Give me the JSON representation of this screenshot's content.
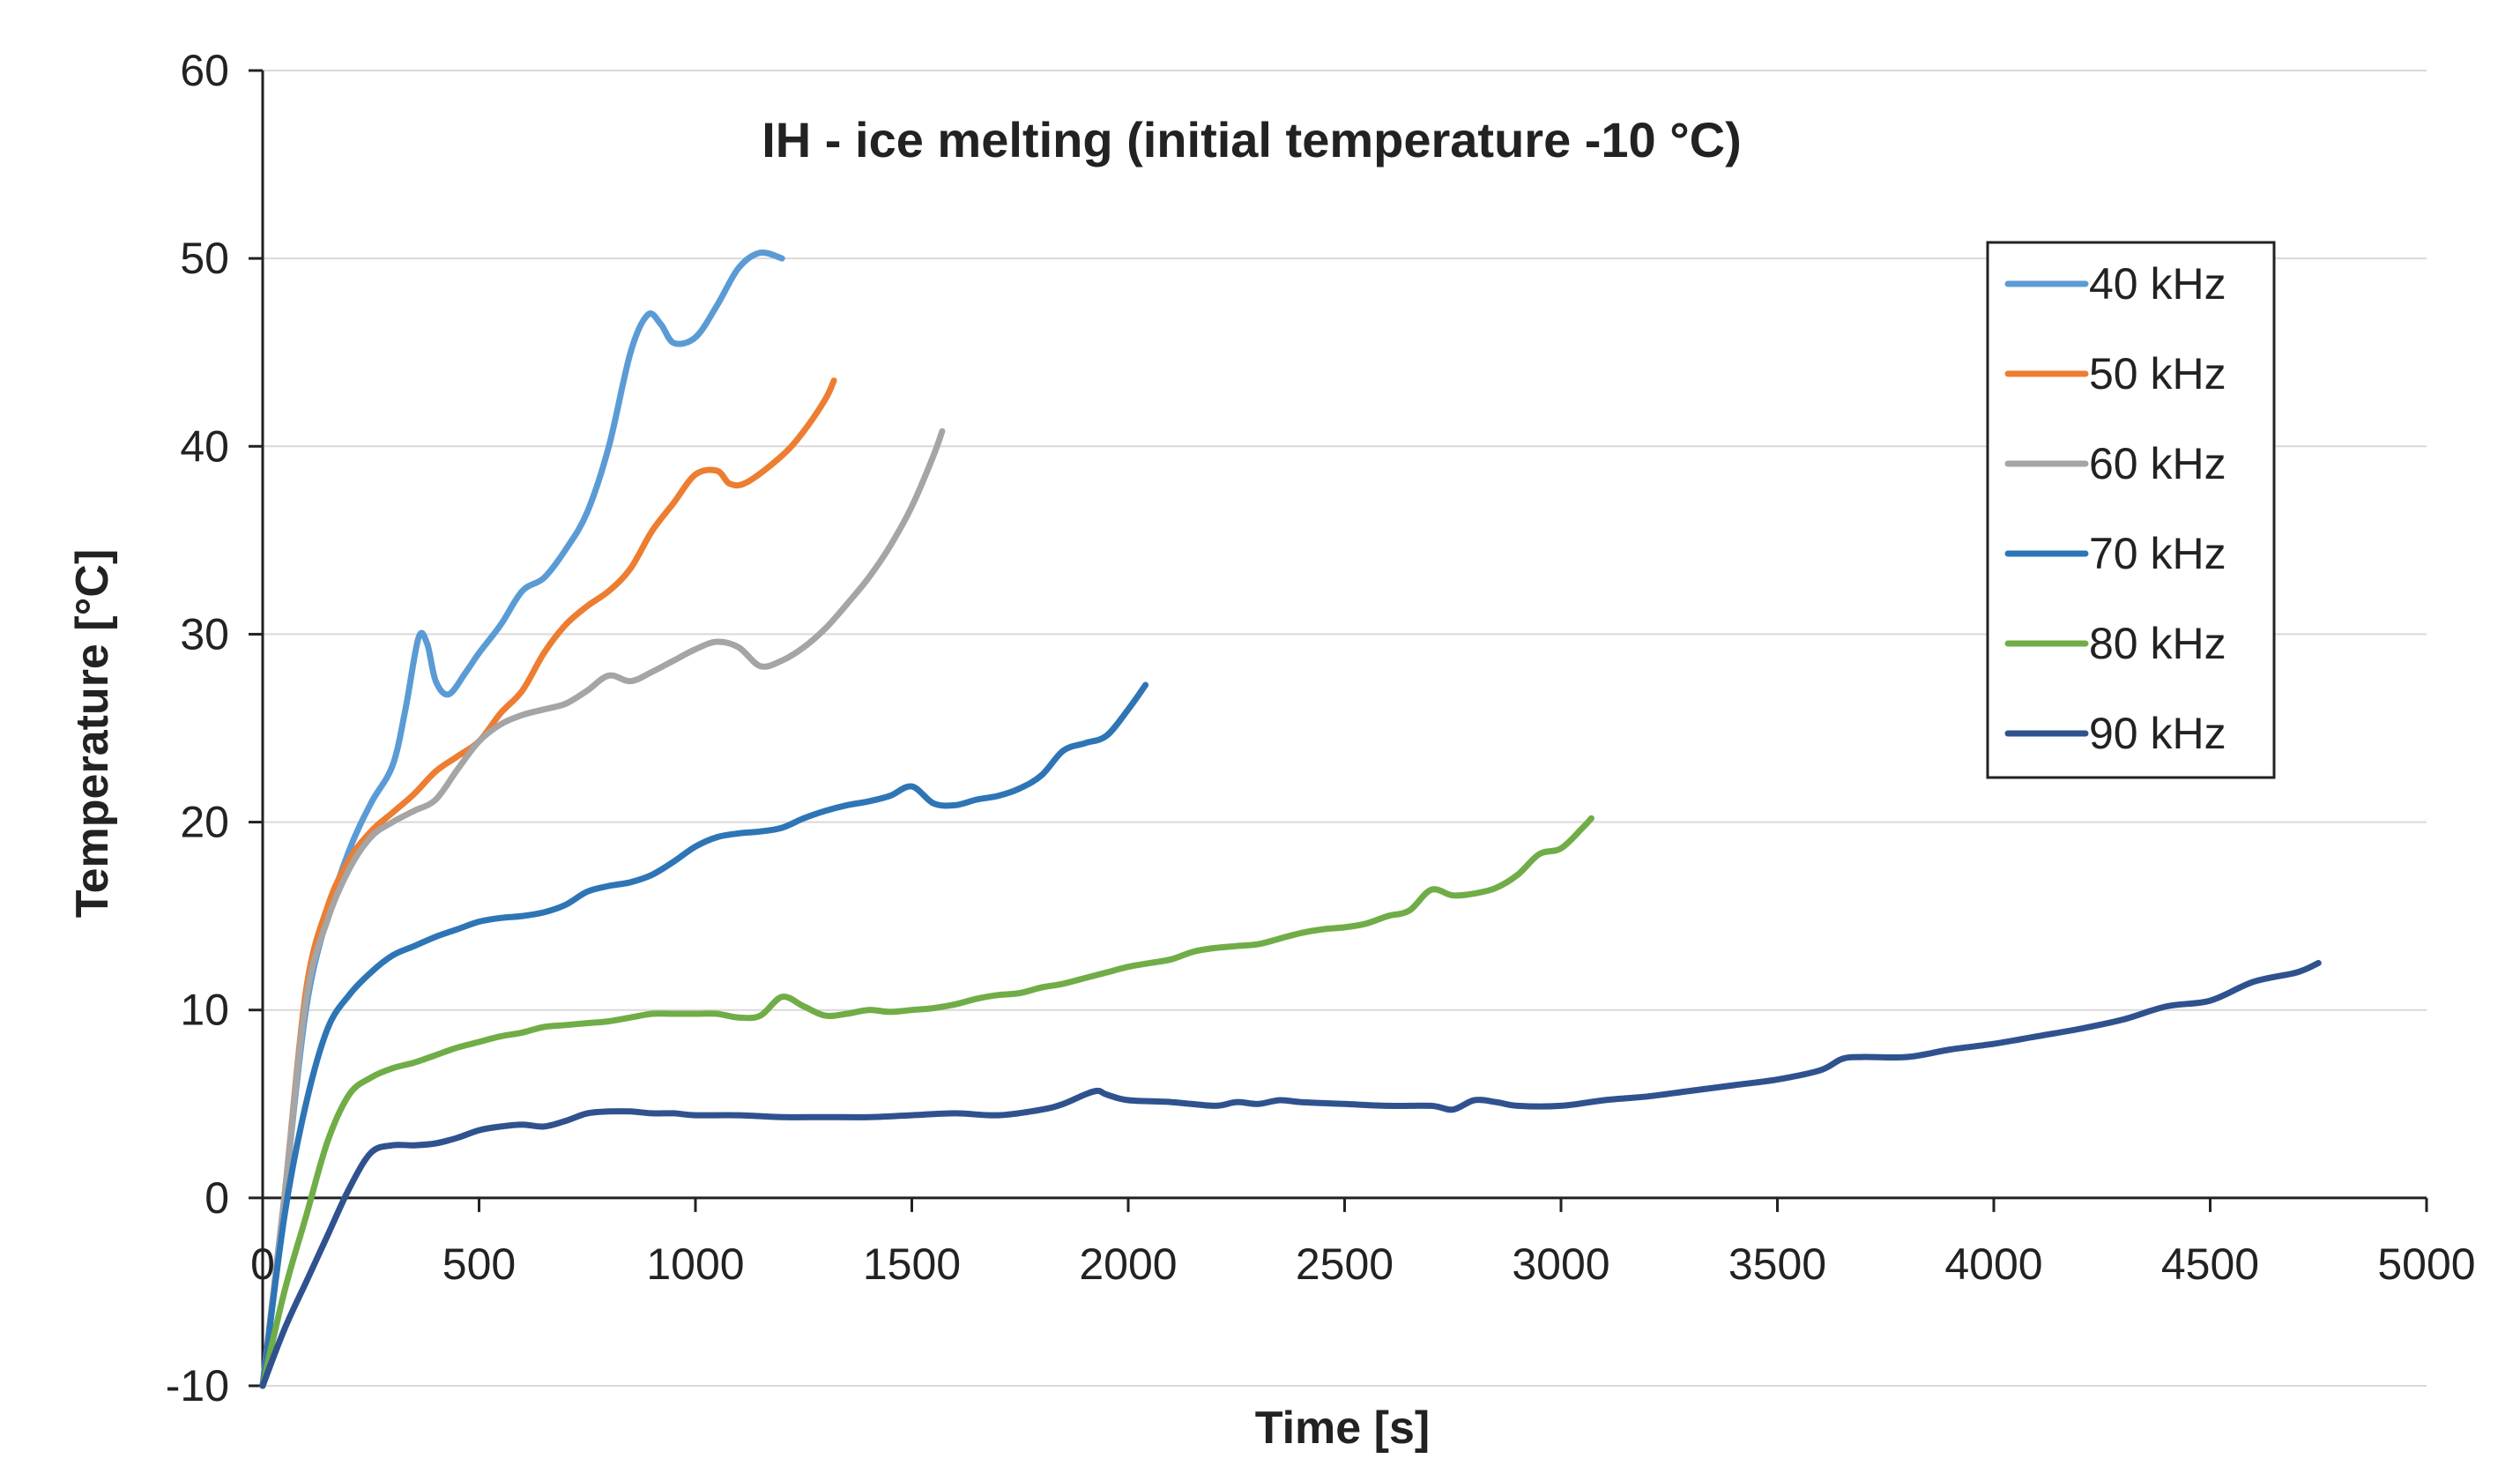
{
  "chart_data": {
    "type": "line",
    "title": "IH - ice melting (initial temperature -10 °C)",
    "xlabel": "Time [s]",
    "ylabel": "Temperature [°C]",
    "xlim": [
      0,
      5000
    ],
    "ylim": [
      -10,
      60
    ],
    "xticks": [
      0,
      500,
      1000,
      1500,
      2000,
      2500,
      3000,
      3500,
      4000,
      4500,
      5000
    ],
    "yticks": [
      -10,
      0,
      10,
      20,
      30,
      40,
      50,
      60
    ],
    "grid": "horizontal",
    "legend_position": "right",
    "series": [
      {
        "name": "40 kHz",
        "color": "#5b9bd5",
        "points": [
          [
            0,
            -10
          ],
          [
            50,
            0
          ],
          [
            100,
            10
          ],
          [
            150,
            15
          ],
          [
            200,
            18.5
          ],
          [
            250,
            21
          ],
          [
            300,
            23
          ],
          [
            330,
            26
          ],
          [
            360,
            29.8
          ],
          [
            380,
            29.5
          ],
          [
            400,
            27.5
          ],
          [
            430,
            26.8
          ],
          [
            470,
            28
          ],
          [
            500,
            29
          ],
          [
            550,
            30.5
          ],
          [
            600,
            32.3
          ],
          [
            650,
            33
          ],
          [
            700,
            34.5
          ],
          [
            750,
            36.5
          ],
          [
            800,
            40
          ],
          [
            850,
            45
          ],
          [
            890,
            47
          ],
          [
            920,
            46.5
          ],
          [
            950,
            45.5
          ],
          [
            1000,
            45.8
          ],
          [
            1050,
            47.5
          ],
          [
            1100,
            49.5
          ],
          [
            1150,
            50.3
          ],
          [
            1200,
            50
          ]
        ]
      },
      {
        "name": "50 kHz",
        "color": "#ed7d31",
        "points": [
          [
            0,
            -10
          ],
          [
            50,
            0
          ],
          [
            100,
            11
          ],
          [
            150,
            15.5
          ],
          [
            200,
            18
          ],
          [
            250,
            19.5
          ],
          [
            300,
            20.5
          ],
          [
            350,
            21.5
          ],
          [
            400,
            22.7
          ],
          [
            450,
            23.5
          ],
          [
            500,
            24.3
          ],
          [
            550,
            25.8
          ],
          [
            600,
            27
          ],
          [
            650,
            29
          ],
          [
            700,
            30.5
          ],
          [
            750,
            31.5
          ],
          [
            800,
            32.3
          ],
          [
            850,
            33.5
          ],
          [
            900,
            35.5
          ],
          [
            950,
            37
          ],
          [
            1000,
            38.5
          ],
          [
            1050,
            38.7
          ],
          [
            1080,
            38
          ],
          [
            1120,
            38.1
          ],
          [
            1200,
            39.5
          ],
          [
            1250,
            40.8
          ],
          [
            1300,
            42.5
          ],
          [
            1320,
            43.5
          ]
        ]
      },
      {
        "name": "60 kHz",
        "color": "#a5a5a5",
        "points": [
          [
            0,
            -10
          ],
          [
            50,
            0
          ],
          [
            100,
            10.5
          ],
          [
            150,
            14.8
          ],
          [
            200,
            17.5
          ],
          [
            250,
            19.2
          ],
          [
            300,
            20
          ],
          [
            350,
            20.6
          ],
          [
            400,
            21.2
          ],
          [
            450,
            22.8
          ],
          [
            500,
            24.3
          ],
          [
            550,
            25.2
          ],
          [
            600,
            25.7
          ],
          [
            650,
            26
          ],
          [
            700,
            26.3
          ],
          [
            750,
            27
          ],
          [
            800,
            27.8
          ],
          [
            850,
            27.5
          ],
          [
            900,
            28
          ],
          [
            950,
            28.6
          ],
          [
            1000,
            29.2
          ],
          [
            1050,
            29.6
          ],
          [
            1100,
            29.3
          ],
          [
            1150,
            28.3
          ],
          [
            1200,
            28.6
          ],
          [
            1250,
            29.3
          ],
          [
            1300,
            30.3
          ],
          [
            1350,
            31.6
          ],
          [
            1400,
            33
          ],
          [
            1450,
            34.7
          ],
          [
            1500,
            36.8
          ],
          [
            1550,
            39.5
          ],
          [
            1570,
            40.8
          ]
        ]
      },
      {
        "name": "70 kHz",
        "color": "#2e75b6",
        "points": [
          [
            0,
            -10
          ],
          [
            50,
            -1
          ],
          [
            100,
            5
          ],
          [
            150,
            9
          ],
          [
            200,
            10.8
          ],
          [
            250,
            12
          ],
          [
            300,
            12.9
          ],
          [
            350,
            13.4
          ],
          [
            400,
            13.9
          ],
          [
            450,
            14.3
          ],
          [
            500,
            14.7
          ],
          [
            550,
            14.9
          ],
          [
            600,
            15
          ],
          [
            650,
            15.2
          ],
          [
            700,
            15.6
          ],
          [
            750,
            16.3
          ],
          [
            800,
            16.6
          ],
          [
            850,
            16.8
          ],
          [
            900,
            17.2
          ],
          [
            950,
            17.9
          ],
          [
            1000,
            18.7
          ],
          [
            1050,
            19.2
          ],
          [
            1100,
            19.4
          ],
          [
            1150,
            19.5
          ],
          [
            1200,
            19.7
          ],
          [
            1250,
            20.2
          ],
          [
            1300,
            20.6
          ],
          [
            1350,
            20.9
          ],
          [
            1400,
            21.1
          ],
          [
            1450,
            21.4
          ],
          [
            1500,
            21.9
          ],
          [
            1550,
            21
          ],
          [
            1600,
            20.9
          ],
          [
            1650,
            21.2
          ],
          [
            1700,
            21.4
          ],
          [
            1750,
            21.8
          ],
          [
            1800,
            22.5
          ],
          [
            1850,
            23.8
          ],
          [
            1900,
            24.2
          ],
          [
            1950,
            24.6
          ],
          [
            2000,
            26
          ],
          [
            2040,
            27.3
          ]
        ]
      },
      {
        "name": "80 kHz",
        "color": "#70ad47",
        "points": [
          [
            0,
            -10
          ],
          [
            50,
            -5
          ],
          [
            100,
            -1
          ],
          [
            150,
            3
          ],
          [
            200,
            5.5
          ],
          [
            250,
            6.4
          ],
          [
            300,
            6.9
          ],
          [
            350,
            7.2
          ],
          [
            400,
            7.6
          ],
          [
            450,
            8
          ],
          [
            500,
            8.3
          ],
          [
            550,
            8.6
          ],
          [
            600,
            8.8
          ],
          [
            650,
            9.1
          ],
          [
            700,
            9.2
          ],
          [
            750,
            9.3
          ],
          [
            800,
            9.4
          ],
          [
            850,
            9.6
          ],
          [
            900,
            9.8
          ],
          [
            950,
            9.8
          ],
          [
            1000,
            9.8
          ],
          [
            1050,
            9.8
          ],
          [
            1100,
            9.6
          ],
          [
            1150,
            9.7
          ],
          [
            1200,
            10.7
          ],
          [
            1250,
            10.2
          ],
          [
            1300,
            9.7
          ],
          [
            1350,
            9.8
          ],
          [
            1400,
            10
          ],
          [
            1450,
            9.9
          ],
          [
            1500,
            10
          ],
          [
            1550,
            10.1
          ],
          [
            1600,
            10.3
          ],
          [
            1650,
            10.6
          ],
          [
            1700,
            10.8
          ],
          [
            1750,
            10.9
          ],
          [
            1800,
            11.2
          ],
          [
            1850,
            11.4
          ],
          [
            1900,
            11.7
          ],
          [
            1950,
            12
          ],
          [
            2000,
            12.3
          ],
          [
            2050,
            12.5
          ],
          [
            2100,
            12.7
          ],
          [
            2150,
            13.1
          ],
          [
            2200,
            13.3
          ],
          [
            2250,
            13.4
          ],
          [
            2300,
            13.5
          ],
          [
            2350,
            13.8
          ],
          [
            2400,
            14.1
          ],
          [
            2450,
            14.3
          ],
          [
            2500,
            14.4
          ],
          [
            2550,
            14.6
          ],
          [
            2600,
            15
          ],
          [
            2650,
            15.3
          ],
          [
            2700,
            16.4
          ],
          [
            2750,
            16.1
          ],
          [
            2800,
            16.2
          ],
          [
            2850,
            16.5
          ],
          [
            2900,
            17.2
          ],
          [
            2950,
            18.3
          ],
          [
            3000,
            18.6
          ],
          [
            3050,
            19.7
          ],
          [
            3070,
            20.2
          ]
        ]
      },
      {
        "name": "90 kHz",
        "color": "#2f528f",
        "points": [
          [
            0,
            -10
          ],
          [
            50,
            -7
          ],
          [
            100,
            -4.5
          ],
          [
            150,
            -2
          ],
          [
            200,
            0.5
          ],
          [
            250,
            2.4
          ],
          [
            300,
            2.8
          ],
          [
            350,
            2.8
          ],
          [
            400,
            2.9
          ],
          [
            450,
            3.2
          ],
          [
            500,
            3.6
          ],
          [
            550,
            3.8
          ],
          [
            600,
            3.9
          ],
          [
            650,
            3.8
          ],
          [
            700,
            4.1
          ],
          [
            750,
            4.5
          ],
          [
            800,
            4.6
          ],
          [
            850,
            4.6
          ],
          [
            900,
            4.5
          ],
          [
            950,
            4.5
          ],
          [
            1000,
            4.4
          ],
          [
            1100,
            4.4
          ],
          [
            1200,
            4.3
          ],
          [
            1300,
            4.3
          ],
          [
            1400,
            4.3
          ],
          [
            1500,
            4.4
          ],
          [
            1600,
            4.5
          ],
          [
            1700,
            4.4
          ],
          [
            1800,
            4.7
          ],
          [
            1850,
            5
          ],
          [
            1900,
            5.5
          ],
          [
            1930,
            5.7
          ],
          [
            1950,
            5.5
          ],
          [
            2000,
            5.2
          ],
          [
            2100,
            5.1
          ],
          [
            2200,
            4.9
          ],
          [
            2250,
            5.1
          ],
          [
            2300,
            5
          ],
          [
            2350,
            5.2
          ],
          [
            2400,
            5.1
          ],
          [
            2500,
            5
          ],
          [
            2600,
            4.9
          ],
          [
            2700,
            4.9
          ],
          [
            2750,
            4.7
          ],
          [
            2800,
            5.2
          ],
          [
            2850,
            5.1
          ],
          [
            2900,
            4.9
          ],
          [
            3000,
            4.9
          ],
          [
            3100,
            5.2
          ],
          [
            3200,
            5.4
          ],
          [
            3300,
            5.7
          ],
          [
            3400,
            6
          ],
          [
            3500,
            6.3
          ],
          [
            3600,
            6.8
          ],
          [
            3650,
            7.4
          ],
          [
            3700,
            7.5
          ],
          [
            3800,
            7.5
          ],
          [
            3900,
            7.9
          ],
          [
            4000,
            8.2
          ],
          [
            4100,
            8.6
          ],
          [
            4200,
            9
          ],
          [
            4300,
            9.5
          ],
          [
            4400,
            10.2
          ],
          [
            4500,
            10.5
          ],
          [
            4600,
            11.5
          ],
          [
            4700,
            12
          ],
          [
            4750,
            12.5
          ]
        ]
      }
    ]
  }
}
